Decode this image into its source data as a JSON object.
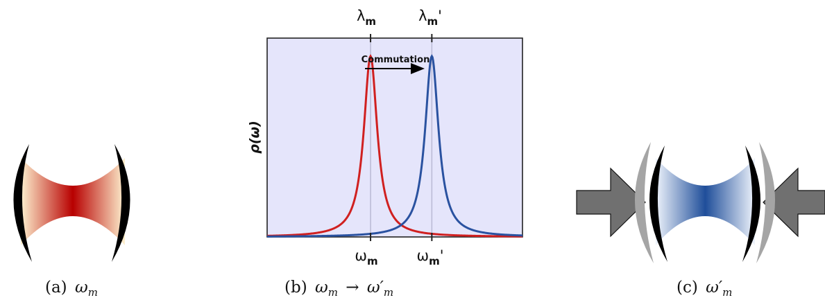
{
  "panels": {
    "a": {
      "caption_prefix": "(a)",
      "caption_symbol": "ω",
      "caption_sub": "m",
      "cavity_color": "#b80000",
      "edge_color": "#fdf1cf"
    },
    "b": {
      "caption_prefix": "(b)",
      "caption_symbol_from": "ω",
      "caption_sub_from": "m",
      "caption_arrow": "→",
      "caption_symbol_to": "ω′",
      "caption_sub_to": "m"
    },
    "c": {
      "caption_prefix": "(c)",
      "caption_symbol": "ω′",
      "caption_sub": "m",
      "cavity_color": "#1f4e9a",
      "edge_color": "#eef3fb",
      "arrow_color": "#707070"
    }
  },
  "chart_data": {
    "type": "line",
    "ylabel": "ρ(ω)",
    "background": "#e5e5fb",
    "annotation": "Commutation",
    "top_labels": [
      {
        "symbol": "λ",
        "sub": "m",
        "prime": ""
      },
      {
        "symbol": "λ",
        "sub": "m",
        "prime": "'"
      }
    ],
    "bottom_labels": [
      {
        "symbol": "ω",
        "sub": "m",
        "prime": ""
      },
      {
        "symbol": "ω",
        "sub": "m",
        "prime": "'"
      }
    ],
    "xlim": [
      0,
      10
    ],
    "ylim": [
      0,
      1.1
    ],
    "series": [
      {
        "color": "#d02020",
        "center": 4.05,
        "width": 0.32,
        "peak": 1.0
      },
      {
        "color": "#2a52a0",
        "center": 6.45,
        "width": 0.32,
        "peak": 1.0
      }
    ]
  }
}
